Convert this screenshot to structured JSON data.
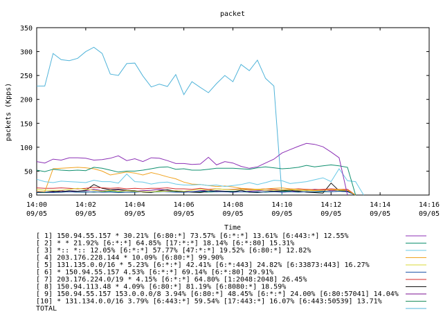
{
  "chart_data": {
    "type": "line",
    "title": "packet",
    "ylabel": "packets (Kpps)",
    "xlabel": "Time",
    "ylim": [
      0,
      350
    ],
    "yticks": [
      0,
      50,
      100,
      150,
      200,
      250,
      300,
      350
    ],
    "xlim": [
      0,
      16
    ],
    "xticks": [
      {
        "v": 0,
        "time": "14:00",
        "date": "09/05"
      },
      {
        "v": 2,
        "time": "14:02",
        "date": "09/05"
      },
      {
        "v": 4,
        "time": "14:04",
        "date": "09/05"
      },
      {
        "v": 6,
        "time": "14:06",
        "date": "09/05"
      },
      {
        "v": 8,
        "time": "14:08",
        "date": "09/05"
      },
      {
        "v": 10,
        "time": "14:10",
        "date": "09/05"
      },
      {
        "v": 12,
        "time": "14:12",
        "date": "09/05"
      },
      {
        "v": 14,
        "time": "14:14",
        "date": "09/05"
      },
      {
        "v": 16,
        "time": "14:16",
        "date": "09/05"
      }
    ],
    "grid": false,
    "legend_position": "bottom",
    "x": [
      0,
      0.33,
      0.67,
      1,
      1.33,
      1.67,
      2,
      2.33,
      2.67,
      3,
      3.33,
      3.67,
      4,
      4.33,
      4.67,
      5,
      5.33,
      5.67,
      6,
      6.33,
      6.67,
      7,
      7.33,
      7.67,
      8,
      8.33,
      8.67,
      9,
      9.33,
      9.67,
      10,
      10.33,
      10.67,
      11,
      11.33,
      11.67,
      12,
      12.33,
      12.67,
      13,
      13.33,
      13.67,
      14,
      14.33,
      14.67,
      15
    ],
    "series": [
      {
        "name": "[ 1] 150.94.55.157 * 30.21%  [6:80:*] 73.57% [6:*:*] 13.61% [6:443:*] 12.55%",
        "color": "#8b2fb5",
        "values": [
          70,
          67,
          75,
          73,
          78,
          78,
          77,
          73,
          74,
          77,
          82,
          72,
          76,
          70,
          78,
          77,
          72,
          66,
          66,
          64,
          65,
          79,
          63,
          70,
          67,
          60,
          56,
          59,
          67,
          75,
          88,
          95,
          102,
          108,
          106,
          101,
          90,
          78,
          0,
          0,
          0,
          0,
          0,
          0,
          0,
          0
        ]
      },
      {
        "name": "[ 2] * * 21.92%  [6:*:*] 64.85% [17:*:*] 18.14% [6:*:80] 15.31%",
        "color": "#0e8f6e",
        "values": [
          52,
          49,
          54,
          52,
          51,
          52,
          51,
          58,
          56,
          52,
          48,
          50,
          50,
          52,
          55,
          58,
          59,
          54,
          55,
          52,
          52,
          54,
          56,
          56,
          56,
          55,
          54,
          57,
          59,
          57,
          55,
          56,
          58,
          62,
          59,
          61,
          63,
          61,
          58,
          0,
          0,
          0,
          0,
          0,
          0,
          0
        ]
      },
      {
        "name": "[ 3] *:: *:: 12.05%  [6:*:*] 57.77% [47:*:*] 19.52% [6:80:*] 12.82%",
        "color": "#67c8e6",
        "values": [
          33,
          28,
          26,
          29,
          28,
          27,
          26,
          31,
          28,
          28,
          25,
          44,
          28,
          27,
          23,
          26,
          27,
          23,
          21,
          21,
          22,
          20,
          21,
          18,
          20,
          22,
          26,
          22,
          26,
          31,
          30,
          24,
          26,
          28,
          32,
          36,
          28,
          55,
          30,
          28,
          0,
          0,
          0,
          0,
          0,
          0
        ]
      },
      {
        "name": "[ 4] 203.176.228.144 * 10.09%  [6:80:*] 99.90%",
        "color": "#f0a21e",
        "values": [
          8,
          7,
          55,
          56,
          57,
          58,
          57,
          55,
          50,
          42,
          45,
          48,
          46,
          42,
          47,
          43,
          38,
          34,
          27,
          23,
          22,
          20,
          18,
          19,
          17,
          14,
          13,
          12,
          13,
          14,
          15,
          13,
          12,
          11,
          10,
          10,
          11,
          12,
          10,
          0,
          0,
          0,
          0,
          0,
          0,
          0
        ]
      },
      {
        "name": "[ 5] 131.135.0.0/16 * 5.23%  [6:*:*] 42.41% [6:*:443] 24.82% [6:33873:443] 16.27%",
        "color": "#d8d836",
        "values": [
          12,
          10,
          10,
          10,
          12,
          14,
          12,
          10,
          8,
          10,
          8,
          9,
          8,
          7,
          7,
          8,
          8,
          9,
          8,
          10,
          12,
          10,
          13,
          12,
          11,
          12,
          10,
          11,
          10,
          10,
          11,
          11,
          10,
          9,
          9,
          10,
          11,
          10,
          10,
          0,
          0,
          0,
          0,
          0,
          0,
          0
        ]
      },
      {
        "name": "[ 6] * 150.94.55.157 4.53%  [6:*:*] 69.14% [6:*:80] 29.91%",
        "color": "#1f56a8",
        "values": [
          6,
          6,
          5,
          6,
          7,
          6,
          6,
          7,
          6,
          6,
          5,
          6,
          6,
          7,
          6,
          8,
          7,
          6,
          6,
          7,
          8,
          8,
          7,
          7,
          6,
          7,
          7,
          6,
          7,
          7,
          6,
          7,
          6,
          7,
          7,
          8,
          7,
          8,
          7,
          0,
          0,
          0,
          0,
          0,
          0,
          0
        ]
      },
      {
        "name": "[ 7] 203.176.224.0/19 * 4.15%  [6:*:*] 64.80% [1:2048:2048] 26.45%",
        "color": "#d62a2a",
        "values": [
          15,
          14,
          14,
          15,
          14,
          13,
          14,
          16,
          15,
          14,
          15,
          13,
          14,
          13,
          14,
          14,
          15,
          13,
          13,
          12,
          14,
          12,
          13,
          12,
          12,
          13,
          12,
          12,
          13,
          12,
          11,
          12,
          13,
          12,
          11,
          12,
          13,
          12,
          12,
          0,
          0,
          0,
          0,
          0,
          0,
          0
        ]
      },
      {
        "name": "[ 8] 150.94.113.48 * 4.09%  [6:80:*] 81.19% [6:8080:*] 18.59%",
        "color": "#111111",
        "values": [
          5,
          6,
          8,
          7,
          9,
          8,
          10,
          22,
          14,
          11,
          12,
          10,
          9,
          6,
          5,
          9,
          11,
          8,
          7,
          6,
          5,
          8,
          9,
          8,
          7,
          10,
          6,
          5,
          7,
          8,
          9,
          10,
          8,
          6,
          5,
          4,
          25,
          9,
          8,
          0,
          0,
          0,
          0,
          0,
          0,
          0
        ]
      },
      {
        "name": "[ 9] 150.94.55.157 153.0.0.0/8 3.94%  [6:80:*] 48.45% [6:*:*] 24.00% [6:80:57041] 14.04%",
        "color": "#7a0f92",
        "values": [
          8,
          6,
          7,
          9,
          7,
          8,
          9,
          12,
          9,
          10,
          11,
          9,
          8,
          9,
          10,
          12,
          10,
          9,
          8,
          7,
          9,
          10,
          8,
          7,
          6,
          7,
          8,
          9,
          10,
          8,
          6,
          7,
          9,
          10,
          12,
          11,
          9,
          10,
          8,
          0,
          0,
          0,
          0,
          0,
          0,
          0
        ]
      },
      {
        "name": "[10] * 131.134.0.0/16 3.79%  [6:443:*] 59.54% [17:443:*] 16.07% [6:443:50539] 13.71%",
        "color": "#1a8c5a",
        "values": [
          5,
          5,
          6,
          6,
          7,
          6,
          7,
          6,
          7,
          8,
          7,
          6,
          7,
          7,
          6,
          7,
          8,
          7,
          6,
          7,
          7,
          6,
          7,
          8,
          8,
          7,
          6,
          7,
          6,
          7,
          8,
          8,
          7,
          7,
          6,
          7,
          7,
          8,
          7,
          0,
          0,
          0,
          0,
          0,
          0,
          0
        ]
      },
      {
        "name": "TOTAL",
        "color": "#4fb3d9",
        "values": [
          228,
          228,
          296,
          283,
          281,
          286,
          300,
          309,
          296,
          253,
          250,
          275,
          276,
          249,
          226,
          232,
          227,
          252,
          210,
          237,
          225,
          214,
          233,
          250,
          237,
          273,
          260,
          282,
          244,
          228,
          0,
          0,
          0,
          0,
          0,
          0,
          0,
          0,
          0,
          0,
          0,
          0,
          0,
          0,
          0,
          0
        ]
      }
    ]
  }
}
